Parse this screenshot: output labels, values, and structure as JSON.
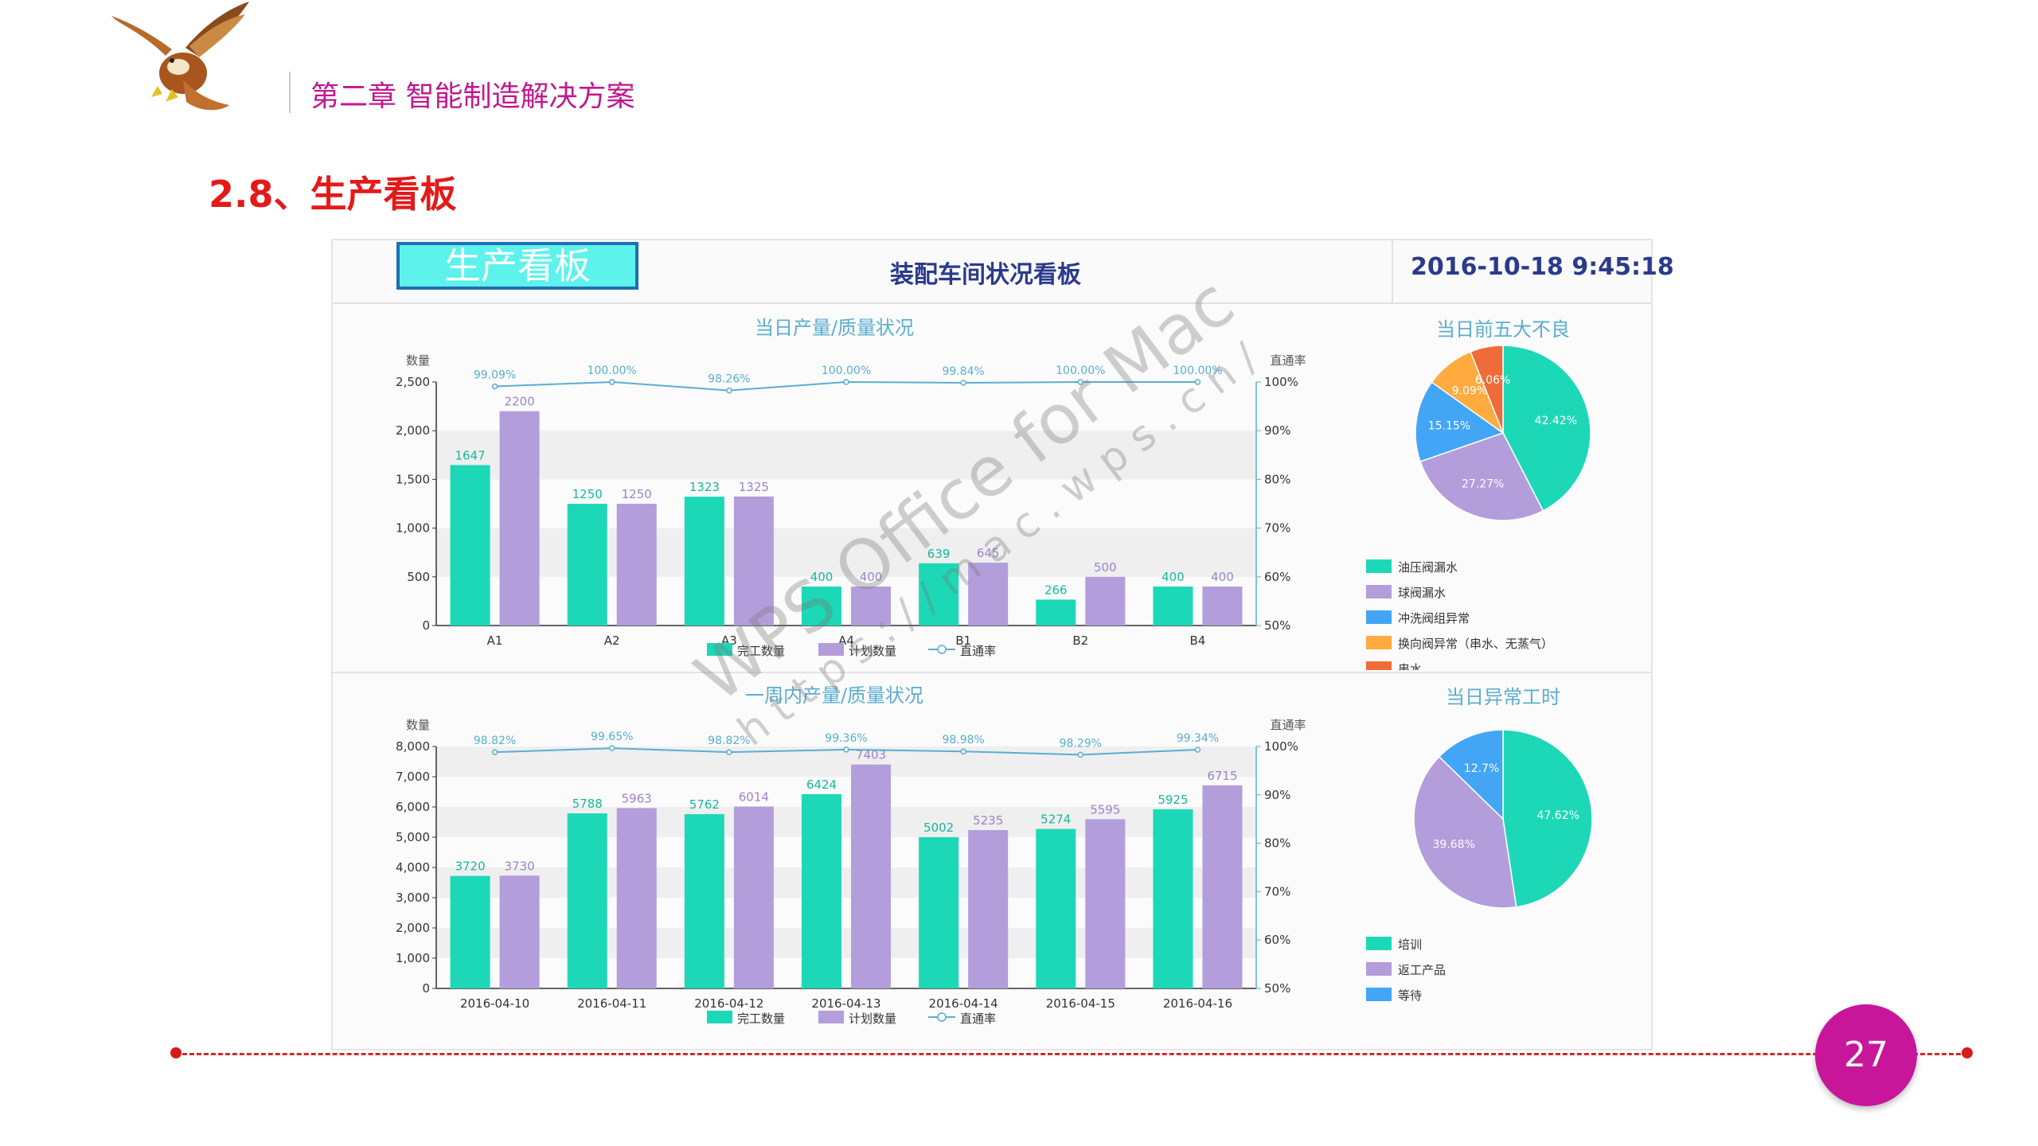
{
  "header": {
    "chapter": "第二章  智能制造解决方案",
    "section": "2.8、生产看板",
    "logo_icon": "eagle-icon"
  },
  "board": {
    "tag": "生产看板",
    "title": "装配车间状况看板",
    "datetime": "2016-10-18 9:45:18"
  },
  "page_number": "27",
  "watermark": {
    "line1": "WPS Office for Mac",
    "line2": "https://mac.wps.cn/"
  },
  "colors": {
    "completed": "#1dd8b6",
    "planned": "#b39ddb",
    "rate": "#5aaed0",
    "accent": "#c8169a",
    "dashes": "#d02a2a"
  },
  "chart_data": [
    {
      "type": "bar",
      "title": "当日产量/质量状况",
      "ylabel": "数量",
      "y2label": "直通率",
      "categories": [
        "A1",
        "A2",
        "A3",
        "A4",
        "B1",
        "B2",
        "B4"
      ],
      "ylim": [
        0,
        2500
      ],
      "yticks": [
        "0",
        "500",
        "1,000",
        "1,500",
        "2,000",
        "2,500"
      ],
      "y2ticks": [
        "50%",
        "60%",
        "70%",
        "80%",
        "90%",
        "100%"
      ],
      "series": [
        {
          "name": "完工数量",
          "values": [
            1647,
            1250,
            1323,
            400,
            639,
            266,
            400
          ]
        },
        {
          "name": "计划数量",
          "values": [
            2200,
            1250,
            1325,
            400,
            645,
            500,
            400
          ]
        }
      ],
      "rate": {
        "name": "直通率",
        "values": [
          99.09,
          100.0,
          98.26,
          100.0,
          99.84,
          100.0,
          100.0
        ],
        "labels": [
          "99.09%",
          "100.00%",
          "98.26%",
          "100.00%",
          "99.84%",
          "100.00%",
          "100.00%"
        ]
      }
    },
    {
      "type": "pie",
      "title": "当日前五大不良",
      "slices": [
        {
          "label": "油压阀漏水",
          "value": 42.42
        },
        {
          "label": "球阀漏水",
          "value": 27.27
        },
        {
          "label": "冲洗阀组异常",
          "value": 15.15
        },
        {
          "label": "换向阀异常（串水、无蒸气）",
          "value": 9.09
        },
        {
          "label": "串水",
          "value": 6.06
        }
      ],
      "slice_labels": [
        "42.42%",
        "27.27%",
        "15.15%",
        "9.09%",
        "6.06%"
      ]
    },
    {
      "type": "bar",
      "title": "一周内产量/质量状况",
      "ylabel": "数量",
      "y2label": "直通率",
      "categories": [
        "2016-04-10",
        "2016-04-11",
        "2016-04-12",
        "2016-04-13",
        "2016-04-14",
        "2016-04-15",
        "2016-04-16"
      ],
      "ylim": [
        0,
        8000
      ],
      "yticks": [
        "0",
        "1,000",
        "2,000",
        "3,000",
        "4,000",
        "5,000",
        "6,000",
        "7,000",
        "8,000"
      ],
      "y2ticks": [
        "50%",
        "60%",
        "70%",
        "80%",
        "90%",
        "100%"
      ],
      "series": [
        {
          "name": "完工数量",
          "values": [
            3720,
            5788,
            5762,
            6424,
            5002,
            5274,
            5925
          ]
        },
        {
          "name": "计划数量",
          "values": [
            3730,
            5963,
            6014,
            7403,
            5235,
            5595,
            6715
          ]
        }
      ],
      "rate": {
        "name": "直通率",
        "values": [
          98.82,
          99.65,
          98.82,
          99.36,
          98.98,
          98.29,
          99.34
        ],
        "labels": [
          "98.82%",
          "99.65%",
          "98.82%",
          "99.36%",
          "98.98%",
          "98.29%",
          "99.34%"
        ]
      }
    },
    {
      "type": "pie",
      "title": "当日异常工时",
      "slices": [
        {
          "label": "培训",
          "value": 47.62
        },
        {
          "label": "返工产品",
          "value": 39.68
        },
        {
          "label": "等待",
          "value": 12.7
        }
      ],
      "slice_labels": [
        "47.62%",
        "39.68%",
        "12.7%"
      ]
    }
  ]
}
